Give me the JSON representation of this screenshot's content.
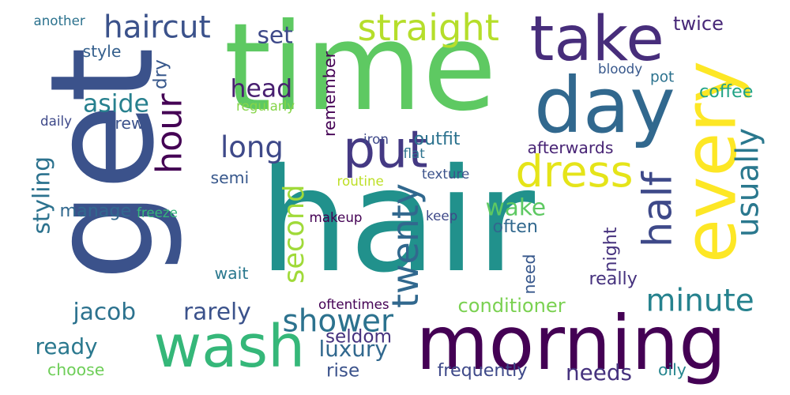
{
  "words": [
    {
      "text": "hair",
      "color": "#21918c"
    },
    {
      "text": "get",
      "color": "#3b528b"
    },
    {
      "text": "time",
      "color": "#5ec962"
    },
    {
      "text": "morning",
      "color": "#440154"
    },
    {
      "text": "wash",
      "color": "#35b779"
    },
    {
      "text": "every",
      "color": "#fde725"
    },
    {
      "text": "day",
      "color": "#31688e"
    },
    {
      "text": "take",
      "color": "#472d7b"
    },
    {
      "text": "put",
      "color": "#443983"
    },
    {
      "text": "dress",
      "color": "#e5e419"
    },
    {
      "text": "straight",
      "color": "#b5de2b"
    },
    {
      "text": "haircut",
      "color": "#3b528b"
    },
    {
      "text": "half",
      "color": "#3e4989"
    },
    {
      "text": "hour",
      "color": "#440154"
    },
    {
      "text": "twenty",
      "color": "#31688e"
    },
    {
      "text": "shower",
      "color": "#2c728e"
    },
    {
      "text": "minute",
      "color": "#26828e"
    },
    {
      "text": "usually",
      "color": "#2a788e"
    },
    {
      "text": "long",
      "color": "#3e4989"
    },
    {
      "text": "head",
      "color": "#481f70"
    },
    {
      "text": "aside",
      "color": "#27808e"
    },
    {
      "text": "second",
      "color": "#a0da39"
    },
    {
      "text": "jacob",
      "color": "#2c728e"
    },
    {
      "text": "rarely",
      "color": "#3b528b"
    },
    {
      "text": "set",
      "color": "#3e4989"
    },
    {
      "text": "styling",
      "color": "#2c728e"
    },
    {
      "text": "wake",
      "color": "#5ec962"
    },
    {
      "text": "luxury",
      "color": "#31688e"
    },
    {
      "text": "ready",
      "color": "#2a788e"
    },
    {
      "text": "needs",
      "color": "#46327e"
    },
    {
      "text": "seldom",
      "color": "#46327e"
    },
    {
      "text": "conditioner",
      "color": "#7ad151"
    },
    {
      "text": "frequently",
      "color": "#3e4989"
    },
    {
      "text": "rise",
      "color": "#3b528b"
    },
    {
      "text": "twice",
      "color": "#482878"
    },
    {
      "text": "style",
      "color": "#35608d"
    },
    {
      "text": "coffee",
      "color": "#20a386"
    },
    {
      "text": "brew",
      "color": "#3b528b"
    },
    {
      "text": "outfit",
      "color": "#2c728e"
    },
    {
      "text": "afterwards",
      "color": "#482475"
    },
    {
      "text": "often",
      "color": "#31688e"
    },
    {
      "text": "manage",
      "color": "#31688e"
    },
    {
      "text": "wait",
      "color": "#2a788e"
    },
    {
      "text": "semi",
      "color": "#38588c"
    },
    {
      "text": "choose",
      "color": "#6ece58"
    },
    {
      "text": "really",
      "color": "#46327e"
    },
    {
      "text": "oily",
      "color": "#25858e"
    },
    {
      "text": "remember",
      "color": "#440154"
    },
    {
      "text": "pot",
      "color": "#2c728e"
    },
    {
      "text": "dry",
      "color": "#38588c"
    },
    {
      "text": "need",
      "color": "#38588c"
    },
    {
      "text": "night",
      "color": "#46327e"
    },
    {
      "text": "another",
      "color": "#2c728e"
    },
    {
      "text": "daily",
      "color": "#3e4989"
    },
    {
      "text": "regularly",
      "color": "#86d549"
    },
    {
      "text": "bloody",
      "color": "#38588c"
    },
    {
      "text": "iron",
      "color": "#3e4989"
    },
    {
      "text": "flat",
      "color": "#2c728e"
    },
    {
      "text": "routine",
      "color": "#bddf26"
    },
    {
      "text": "texture",
      "color": "#3b528b"
    },
    {
      "text": "freeze",
      "color": "#35b779"
    },
    {
      "text": "makeup",
      "color": "#440154"
    },
    {
      "text": "keep",
      "color": "#3e4989"
    },
    {
      "text": "oftentimes",
      "color": "#440154"
    }
  ]
}
